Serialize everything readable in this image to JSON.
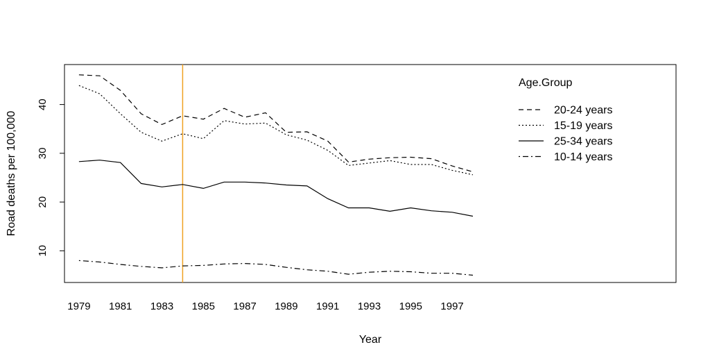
{
  "chart_data": {
    "type": "line",
    "title": "",
    "xlabel": "Year",
    "ylabel": "Road deaths per 100,000",
    "xlim": [
      1978.3,
      2007.8
    ],
    "ylim": [
      3.5,
      48.2
    ],
    "x_ticks": [
      1979,
      1981,
      1983,
      1985,
      1987,
      1989,
      1991,
      1993,
      1995,
      1997
    ],
    "x_tick_labels": [
      "1979",
      "1981",
      "1983",
      "1985",
      "1987",
      "1989",
      "1991",
      "1993",
      "1995",
      "1997"
    ],
    "y_ticks": [
      10,
      20,
      30,
      40
    ],
    "y_tick_labels": [
      "10",
      "20",
      "30",
      "40"
    ],
    "grid": false,
    "legend": {
      "title": "Age.Group",
      "placement": "top-right"
    },
    "reference_line": {
      "x": 1984,
      "color": "#f0a020"
    },
    "x": [
      1979,
      1980,
      1981,
      1982,
      1983,
      1984,
      1985,
      1986,
      1987,
      1988,
      1989,
      1990,
      1991,
      1992,
      1993,
      1994,
      1995,
      1996,
      1997,
      1998
    ],
    "series": [
      {
        "name": "20-24 years",
        "dash": "dashed",
        "values": [
          46.1,
          45.9,
          42.9,
          38.1,
          35.9,
          37.7,
          37.0,
          39.2,
          37.4,
          38.3,
          34.3,
          34.4,
          32.5,
          28.2,
          28.8,
          29.1,
          29.2,
          28.9,
          27.4,
          26.2
        ]
      },
      {
        "name": "15-19 years",
        "dash": "dotted",
        "values": [
          43.9,
          42.2,
          38.1,
          34.3,
          32.5,
          34.0,
          33.0,
          36.7,
          36.0,
          36.2,
          33.8,
          32.7,
          30.6,
          27.5,
          28.0,
          28.5,
          27.7,
          27.7,
          26.5,
          25.6
        ]
      },
      {
        "name": "25-34 years",
        "dash": "solid",
        "values": [
          28.3,
          28.6,
          28.1,
          23.8,
          23.1,
          23.6,
          22.8,
          24.1,
          24.1,
          23.9,
          23.5,
          23.3,
          20.7,
          18.8,
          18.8,
          18.1,
          18.8,
          18.2,
          17.9,
          17.1
        ]
      },
      {
        "name": "10-14 years",
        "dash": "dotdash",
        "values": [
          8.0,
          7.7,
          7.2,
          6.8,
          6.5,
          6.9,
          7.0,
          7.3,
          7.4,
          7.2,
          6.6,
          6.1,
          5.8,
          5.2,
          5.6,
          5.8,
          5.7,
          5.4,
          5.4,
          5.0
        ]
      }
    ]
  }
}
